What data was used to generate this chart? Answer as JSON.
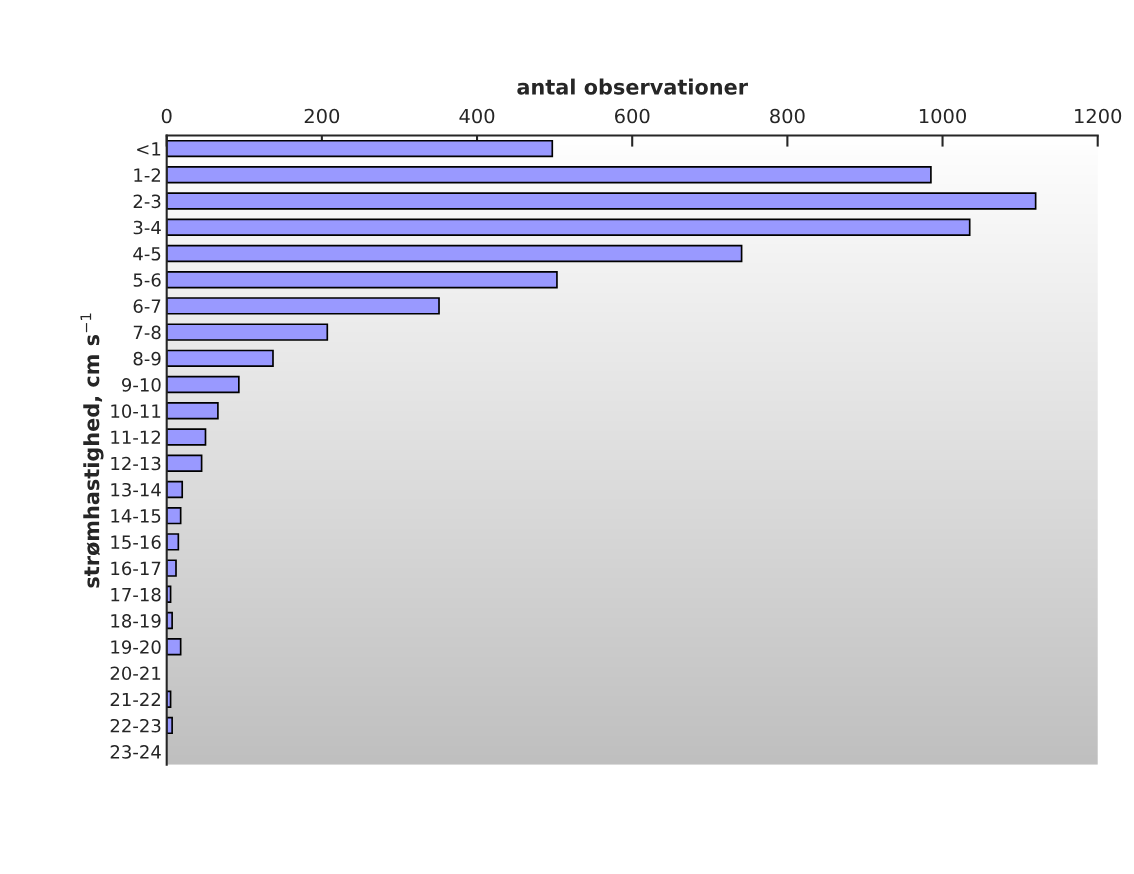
{
  "chart_data": {
    "type": "bar",
    "orientation": "horizontal",
    "xlabel": "antal observationer",
    "ylabel": "strømhastighed, cm s$^{−1}$",
    "categories": [
      "<1",
      "1-2",
      "2-3",
      "3-4",
      "4-5",
      "5-6",
      "6-7",
      "7-8",
      "8-9",
      "9-10",
      "10-11",
      "11-12",
      "12-13",
      "13-14",
      "14-15",
      "15-16",
      "16-17",
      "17-18",
      "18-19",
      "19-20",
      "20-21",
      "21-22",
      "22-23",
      "23-24"
    ],
    "values": [
      497,
      985,
      1120,
      1035,
      741,
      503,
      351,
      207,
      137,
      93,
      66,
      50,
      45,
      20,
      18,
      15,
      12,
      5,
      7,
      18,
      0,
      5,
      7,
      0
    ],
    "color": "#9999ff",
    "xlim": [
      0,
      1200
    ],
    "xticks": [
      0,
      200,
      400,
      600,
      800,
      1000,
      1200
    ],
    "grid": false,
    "legend": false
  }
}
